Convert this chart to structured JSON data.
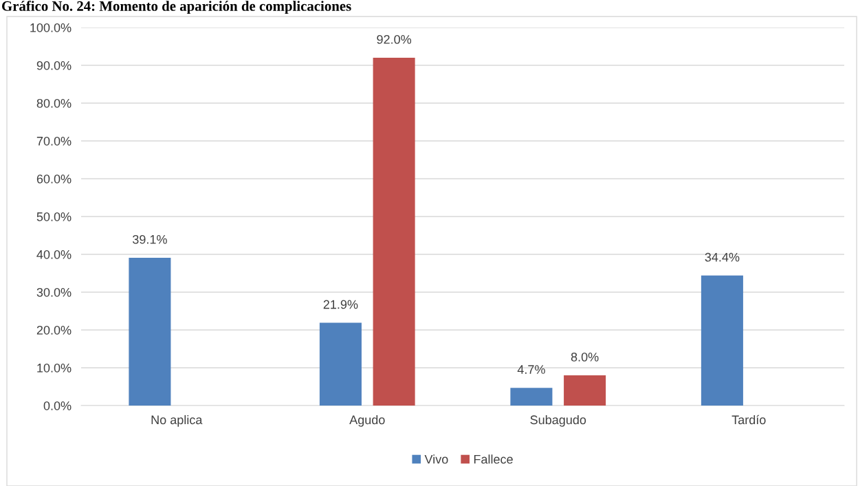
{
  "chart_data": {
    "type": "bar",
    "title": "Gráfico No. 24: Momento de aparición de complicaciones",
    "categories": [
      "No aplica",
      "Agudo",
      "Subagudo",
      "Tardío"
    ],
    "series": [
      {
        "name": "Vivo",
        "color": "#4f81bd",
        "values": [
          39.1,
          21.9,
          4.7,
          34.4
        ],
        "value_labels": [
          "39.1%",
          "21.9%",
          "4.7%",
          "34.4%"
        ]
      },
      {
        "name": "Fallece",
        "color": "#c0504d",
        "values": [
          null,
          92.0,
          8.0,
          null
        ],
        "value_labels": [
          null,
          "92.0%",
          "8.0%",
          null
        ]
      }
    ],
    "ylim": [
      0,
      100
    ],
    "yticks": [
      {
        "value": 0,
        "label": "0.0%"
      },
      {
        "value": 10,
        "label": "10.0%"
      },
      {
        "value": 20,
        "label": "20.0%"
      },
      {
        "value": 30,
        "label": "30.0%"
      },
      {
        "value": 40,
        "label": "40.0%"
      },
      {
        "value": 50,
        "label": "50.0%"
      },
      {
        "value": 60,
        "label": "60.0%"
      },
      {
        "value": 70,
        "label": "70.0%"
      },
      {
        "value": 80,
        "label": "80.0%"
      },
      {
        "value": 90,
        "label": "90.0%"
      },
      {
        "value": 100,
        "label": "100.0%"
      }
    ],
    "grid": "y",
    "legend": "bottom"
  }
}
